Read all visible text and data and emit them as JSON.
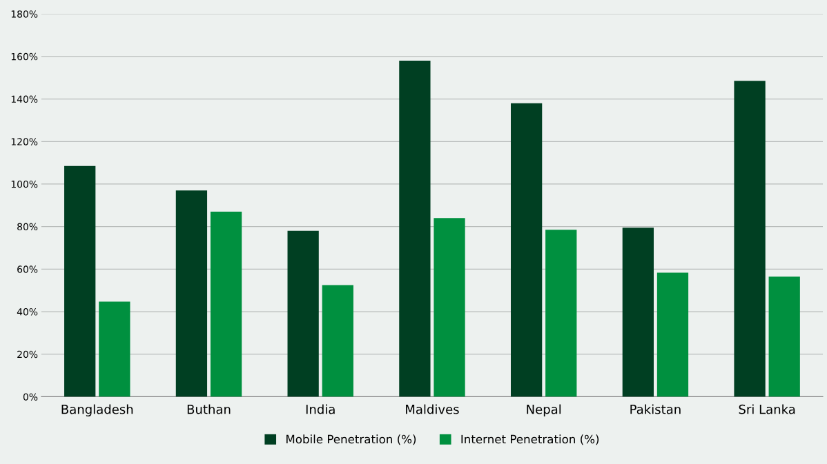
{
  "chart_data": {
    "type": "bar",
    "categories": [
      "Bangladesh",
      "Buthan",
      "India",
      "Maldives",
      "Nepal",
      "Pakistan",
      "Sri Lanka"
    ],
    "series": [
      {
        "name": "Mobile Penetration (%)",
        "color": "#003f22",
        "values": [
          108.5,
          97,
          78,
          158,
          138,
          79.5,
          148.5
        ]
      },
      {
        "name": "Internet Penetration (%)",
        "color": "#00903f",
        "values": [
          44.7,
          87,
          52.5,
          84,
          78.5,
          58.3,
          56.5
        ]
      }
    ],
    "ylim": [
      0,
      180
    ],
    "yticks": [
      {
        "value": 0,
        "label": "0%"
      },
      {
        "value": 20,
        "label": "20%"
      },
      {
        "value": 40,
        "label": "40%"
      },
      {
        "value": 60,
        "label": "60%"
      },
      {
        "value": 80,
        "label": "80%"
      },
      {
        "value": 100,
        "label": "100%"
      },
      {
        "value": 120,
        "label": "120%"
      },
      {
        "value": 140,
        "label": "140%"
      },
      {
        "value": 160,
        "label": "160%"
      },
      {
        "value": 180,
        "label": "180%"
      }
    ],
    "grid": "y",
    "legend": "bottom"
  }
}
